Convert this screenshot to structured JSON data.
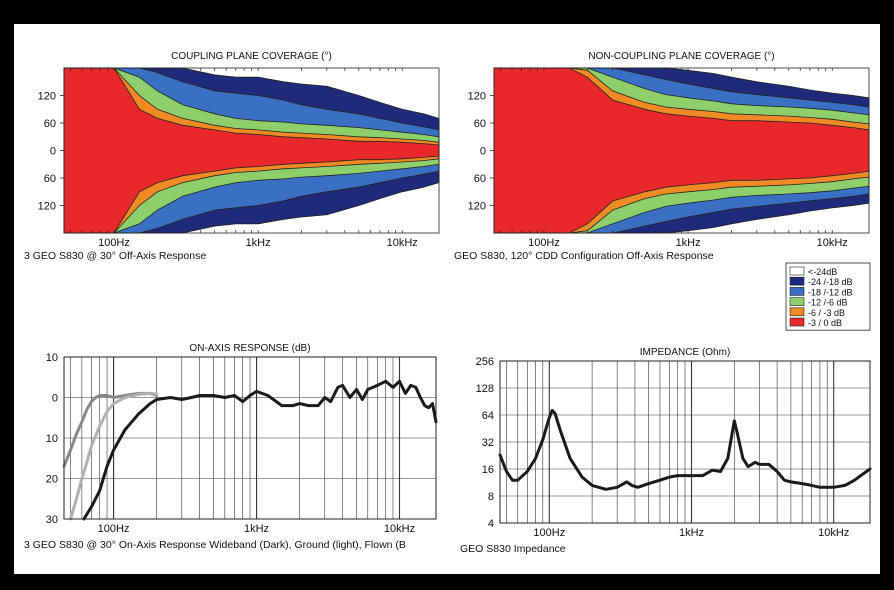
{
  "chart_data": [
    {
      "type": "heatmap",
      "title": "COUPLING PLANE COVERAGE (°)",
      "caption": "3 GEO S830 @ 30°  Off-Axis Response",
      "x_scale": "log",
      "xlim": [
        45,
        18000
      ],
      "x_ticks": [
        {
          "value": 100,
          "label": "100Hz"
        },
        {
          "value": 1000,
          "label": "1kHz"
        },
        {
          "value": 10000,
          "label": "10kHz"
        }
      ],
      "y_ticks": [
        {
          "value": 120,
          "label": "120"
        },
        {
          "value": 60,
          "label": "60"
        },
        {
          "value": 0,
          "label": "0"
        },
        {
          "value": -60,
          "label": "60"
        },
        {
          "value": -120,
          "label": "120"
        }
      ],
      "ylim": [
        -180,
        180
      ],
      "contours_deg": {
        "freq": [
          45,
          70,
          100,
          150,
          200,
          300,
          500,
          700,
          1000,
          1500,
          2000,
          3000,
          5000,
          7000,
          10000,
          14000,
          18000
        ],
        "-3 / 0 dB": [
          180,
          180,
          180,
          90,
          70,
          55,
          45,
          38,
          35,
          30,
          28,
          25,
          20,
          20,
          18,
          15,
          12
        ],
        "-6 / -3 dB": [
          180,
          180,
          180,
          120,
          90,
          70,
          55,
          48,
          45,
          40,
          38,
          35,
          30,
          28,
          25,
          22,
          18
        ],
        "-12 / -6 dB": [
          180,
          180,
          180,
          160,
          130,
          100,
          80,
          70,
          65,
          62,
          58,
          55,
          50,
          45,
          40,
          35,
          30
        ],
        "-18 / -12 dB": [
          180,
          180,
          180,
          180,
          170,
          150,
          130,
          125,
          120,
          110,
          100,
          90,
          80,
          70,
          60,
          52,
          45
        ],
        "-24 / -18 dB": [
          180,
          180,
          180,
          180,
          180,
          180,
          165,
          160,
          160,
          150,
          145,
          140,
          120,
          105,
          90,
          80,
          70
        ]
      }
    },
    {
      "type": "heatmap",
      "title": "NON-COUPLING PLANE COVERAGE (°)",
      "caption": "GEO S830, 120°  CDD Configuration Off-Axis Response",
      "x_scale": "log",
      "xlim": [
        45,
        18000
      ],
      "x_ticks": [
        {
          "value": 100,
          "label": "100Hz"
        },
        {
          "value": 1000,
          "label": "1kHz"
        },
        {
          "value": 10000,
          "label": "10kHz"
        }
      ],
      "y_ticks": [
        {
          "value": 120,
          "label": "120"
        },
        {
          "value": 60,
          "label": "60"
        },
        {
          "value": 0,
          "label": "0"
        },
        {
          "value": -60,
          "label": "60"
        },
        {
          "value": -120,
          "label": "120"
        }
      ],
      "ylim": [
        -180,
        180
      ],
      "contours_deg": {
        "freq": [
          45,
          70,
          100,
          150,
          200,
          300,
          500,
          700,
          1000,
          1500,
          2000,
          3000,
          5000,
          7000,
          10000,
          14000,
          18000
        ],
        "-3 / 0 dB": [
          180,
          180,
          180,
          180,
          160,
          110,
          90,
          80,
          75,
          70,
          65,
          65,
          62,
          60,
          55,
          50,
          45
        ],
        "-6 / -3 dB": [
          180,
          180,
          180,
          180,
          175,
          130,
          105,
          95,
          90,
          85,
          80,
          78,
          75,
          72,
          68,
          62,
          58
        ],
        "-12 / -6 dB": [
          180,
          180,
          180,
          180,
          180,
          160,
          135,
          122,
          115,
          108,
          102,
          98,
          95,
          92,
          88,
          82,
          78
        ],
        "-18 / -12 dB": [
          180,
          180,
          180,
          180,
          180,
          180,
          165,
          155,
          145,
          135,
          128,
          122,
          115,
          110,
          105,
          100,
          95
        ],
        "-24 / -18 dB": [
          180,
          180,
          180,
          180,
          180,
          180,
          180,
          180,
          175,
          168,
          160,
          150,
          140,
          132,
          125,
          120,
          115
        ]
      }
    },
    {
      "type": "line",
      "title": "ON-AXIS RESPONSE (dB)",
      "caption": "3 GEO S830 @ 30°  On-Axis Response Wideband (Dark), Ground (light), Flown (B",
      "x_scale": "log",
      "xlim": [
        45,
        18000
      ],
      "x_ticks": [
        {
          "value": 100,
          "label": "100Hz"
        },
        {
          "value": 1000,
          "label": "1kHz"
        },
        {
          "value": 10000,
          "label": "10kHz"
        }
      ],
      "ylim": [
        -30,
        10
      ],
      "y_ticks": [
        {
          "value": 10,
          "label": "10"
        },
        {
          "value": 0,
          "label": "0"
        },
        {
          "value": -10,
          "label": "10"
        },
        {
          "value": -20,
          "label": "20"
        },
        {
          "value": -30,
          "label": "30"
        }
      ],
      "series": [
        {
          "color": "#888888",
          "x": [
            45,
            50,
            55,
            60,
            65,
            70,
            75,
            80,
            90,
            100,
            120,
            150,
            180,
            200
          ],
          "y": [
            -17,
            -13,
            -9,
            -6,
            -3,
            -1,
            0,
            0.5,
            0.5,
            0,
            0.5,
            1,
            1,
            0.5
          ]
        },
        {
          "color": "#b0b0b0",
          "x": [
            50,
            55,
            60,
            65,
            70,
            80,
            90,
            100,
            120,
            150,
            180,
            200
          ],
          "y": [
            -30,
            -25,
            -20,
            -16,
            -12,
            -7,
            -3.5,
            -1.5,
            0,
            0.8,
            1,
            0.8
          ]
        },
        {
          "color": "#1a1a1a",
          "x": [
            62,
            70,
            80,
            90,
            100,
            120,
            150,
            180,
            200,
            250,
            300,
            350,
            400,
            500,
            600,
            700,
            800,
            900,
            1000,
            1200,
            1500,
            1800,
            2000,
            2300,
            2700,
            3000,
            3300,
            3700,
            4000,
            4500,
            5000,
            5500,
            6000,
            6500,
            7000,
            8000,
            9000,
            10000,
            11000,
            12000,
            13000,
            14000,
            15000,
            16000,
            17000,
            18000
          ],
          "y": [
            -30,
            -27,
            -23,
            -17,
            -13,
            -8,
            -4,
            -1.5,
            -0.5,
            0,
            -0.5,
            0,
            0.5,
            0.5,
            0,
            0.5,
            -1,
            0.5,
            1.5,
            0.5,
            -2,
            -2,
            -1.5,
            -2,
            -2,
            0,
            -1,
            2.5,
            3,
            0,
            2,
            -0.5,
            2,
            2.5,
            3,
            4,
            2.5,
            4,
            1,
            3,
            2.5,
            0,
            -2,
            -2.5,
            -1.5,
            -6
          ]
        }
      ]
    },
    {
      "type": "line",
      "title": "IMPEDANCE (Ohm)",
      "caption": "GEO S830 Impedance",
      "x_scale": "log",
      "y_scale": "log2",
      "xlim": [
        45,
        18000
      ],
      "ylim": [
        4,
        256
      ],
      "x_ticks": [
        {
          "value": 100,
          "label": "100Hz"
        },
        {
          "value": 1000,
          "label": "1kHz"
        },
        {
          "value": 10000,
          "label": "10kHz"
        }
      ],
      "y_ticks": [
        {
          "value": 256,
          "label": "256"
        },
        {
          "value": 128,
          "label": "128"
        },
        {
          "value": 64,
          "label": "64"
        },
        {
          "value": 32,
          "label": "32"
        },
        {
          "value": 16,
          "label": "16"
        },
        {
          "value": 8,
          "label": "8"
        },
        {
          "value": 4,
          "label": "4"
        }
      ],
      "series": [
        {
          "color": "#1a1a1a",
          "x": [
            45,
            50,
            55,
            60,
            65,
            70,
            80,
            90,
            100,
            105,
            110,
            120,
            140,
            170,
            200,
            250,
            300,
            350,
            380,
            420,
            500,
            600,
            700,
            800,
            1000,
            1200,
            1400,
            1600,
            1800,
            2000,
            2100,
            2300,
            2500,
            2800,
            3000,
            3500,
            4000,
            4500,
            5000,
            6000,
            7000,
            8000,
            10000,
            12000,
            14000,
            16000,
            18000
          ],
          "y": [
            23,
            15,
            12,
            12,
            13.5,
            15,
            21,
            34,
            60,
            72,
            66,
            42,
            21,
            13,
            10.5,
            9.5,
            10,
            11.5,
            10.5,
            10,
            11,
            12,
            13,
            13.5,
            13.5,
            13.5,
            15.5,
            15,
            21,
            55,
            40,
            21,
            17,
            19,
            18,
            18,
            15,
            12,
            11.5,
            11,
            10.5,
            10,
            10,
            10.5,
            12,
            14,
            16
          ]
        }
      ]
    }
  ],
  "legend": {
    "items": [
      {
        "label": "<-24dB",
        "color": "#ffffff"
      },
      {
        "label": "-24 /-18 dB",
        "color": "#1f2a7a"
      },
      {
        "label": "-18 /-12 dB",
        "color": "#3a6fc4"
      },
      {
        "label": "-12 /-6 dB",
        "color": "#8ecf6c"
      },
      {
        "label": "-6 / -3 dB",
        "color": "#f08a24"
      },
      {
        "label": "-3 / 0 dB",
        "color": "#e8282b"
      }
    ]
  }
}
